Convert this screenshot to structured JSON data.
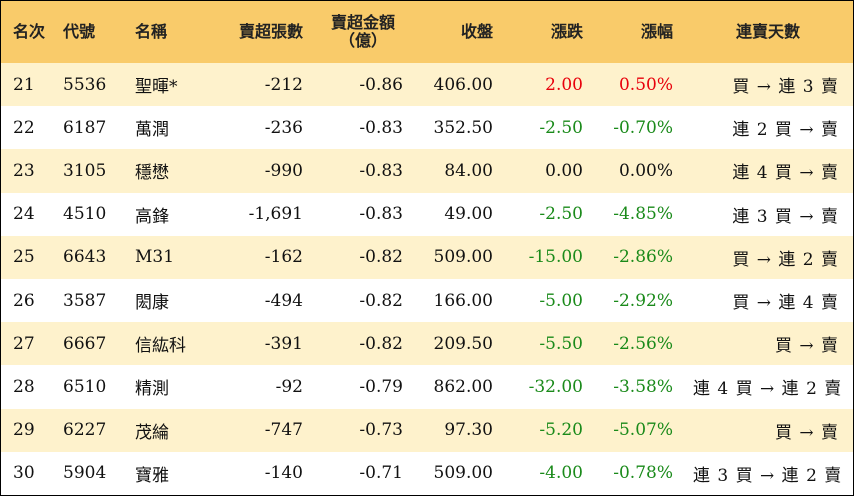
{
  "colors": {
    "header_bg": "#f9cb6a",
    "odd_row_bg": "#fef2cc",
    "even_row_bg": "#ffffff",
    "up": "#e8000b",
    "down": "#1a8a1a"
  },
  "headers": {
    "rank": "名次",
    "code": "代號",
    "name": "名稱",
    "net_lots": "賣超張數",
    "net_amount_line1": "賣超金額",
    "net_amount_line2": "（億）",
    "close": "收盤",
    "change": "漲跌",
    "pct": "漲幅",
    "streak": "連賣天數"
  },
  "chart_data": {
    "type": "table",
    "columns": [
      "名次",
      "代號",
      "名稱",
      "賣超張數",
      "賣超金額（億）",
      "收盤",
      "漲跌",
      "漲幅",
      "連賣天數"
    ],
    "rows": [
      {
        "rank": "21",
        "code": "5536",
        "name": "聖暉*",
        "net_lots": "-212",
        "net_amount": "-0.86",
        "close": "406.00",
        "change": "2.00",
        "pct": "0.50%",
        "streak": "買 → 連 3 賣",
        "trend": "up"
      },
      {
        "rank": "22",
        "code": "6187",
        "name": "萬潤",
        "net_lots": "-236",
        "net_amount": "-0.83",
        "close": "352.50",
        "change": "-2.50",
        "pct": "-0.70%",
        "streak": "連 2 買 → 賣",
        "trend": "down"
      },
      {
        "rank": "23",
        "code": "3105",
        "name": "穩懋",
        "net_lots": "-990",
        "net_amount": "-0.83",
        "close": "84.00",
        "change": "0.00",
        "pct": "0.00%",
        "streak": "連 4 買 → 賣",
        "trend": "flat"
      },
      {
        "rank": "24",
        "code": "4510",
        "name": "高鋒",
        "net_lots": "-1,691",
        "net_amount": "-0.83",
        "close": "49.00",
        "change": "-2.50",
        "pct": "-4.85%",
        "streak": "連 3 買 → 賣",
        "trend": "down"
      },
      {
        "rank": "25",
        "code": "6643",
        "name": "M31",
        "net_lots": "-162",
        "net_amount": "-0.82",
        "close": "509.00",
        "change": "-15.00",
        "pct": "-2.86%",
        "streak": "買 → 連 2 賣",
        "trend": "down"
      },
      {
        "rank": "26",
        "code": "3587",
        "name": "閎康",
        "net_lots": "-494",
        "net_amount": "-0.82",
        "close": "166.00",
        "change": "-5.00",
        "pct": "-2.92%",
        "streak": "買 → 連 4 賣",
        "trend": "down"
      },
      {
        "rank": "27",
        "code": "6667",
        "name": "信紘科",
        "net_lots": "-391",
        "net_amount": "-0.82",
        "close": "209.50",
        "change": "-5.50",
        "pct": "-2.56%",
        "streak": "買 → 賣",
        "trend": "down"
      },
      {
        "rank": "28",
        "code": "6510",
        "name": "精測",
        "net_lots": "-92",
        "net_amount": "-0.79",
        "close": "862.00",
        "change": "-32.00",
        "pct": "-3.58%",
        "streak": "連 4 買 → 連 2 賣",
        "trend": "down"
      },
      {
        "rank": "29",
        "code": "6227",
        "name": "茂綸",
        "net_lots": "-747",
        "net_amount": "-0.73",
        "close": "97.30",
        "change": "-5.20",
        "pct": "-5.07%",
        "streak": "買 → 賣",
        "trend": "down"
      },
      {
        "rank": "30",
        "code": "5904",
        "name": "寶雅",
        "net_lots": "-140",
        "net_amount": "-0.71",
        "close": "509.00",
        "change": "-4.00",
        "pct": "-0.78%",
        "streak": "連 3 買 → 連 2 賣",
        "trend": "down"
      }
    ]
  }
}
